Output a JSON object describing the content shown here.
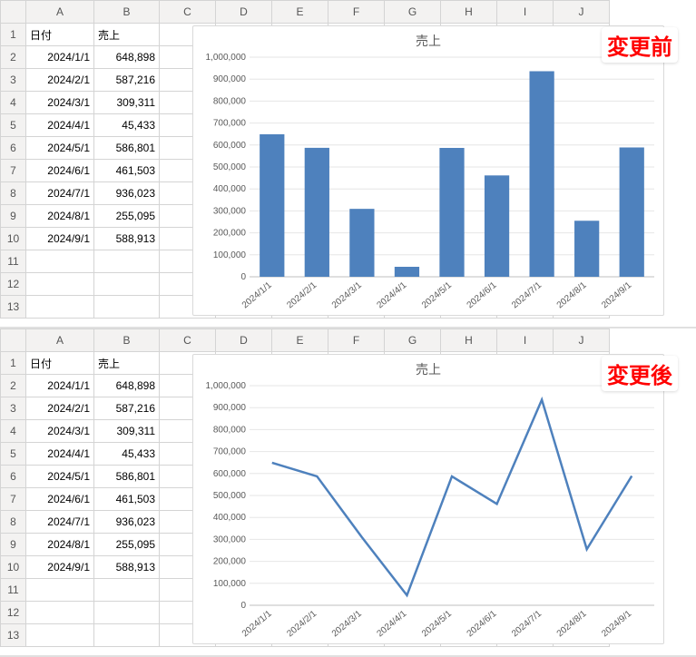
{
  "spreadsheet": {
    "columnLetters": [
      "A",
      "B",
      "C",
      "D",
      "E",
      "F",
      "G",
      "H",
      "I",
      "J"
    ],
    "headers": {
      "A": "日付",
      "B": "売上"
    },
    "rows": [
      {
        "date": "2024/1/1",
        "value": 648898,
        "fmt": "648,898"
      },
      {
        "date": "2024/2/1",
        "value": 587216,
        "fmt": "587,216"
      },
      {
        "date": "2024/3/1",
        "value": 309311,
        "fmt": "309,311"
      },
      {
        "date": "2024/4/1",
        "value": 45433,
        "fmt": "45,433"
      },
      {
        "date": "2024/5/1",
        "value": 586801,
        "fmt": "586,801"
      },
      {
        "date": "2024/6/1",
        "value": 461503,
        "fmt": "461,503"
      },
      {
        "date": "2024/7/1",
        "value": 936023,
        "fmt": "936,023"
      },
      {
        "date": "2024/8/1",
        "value": 255095,
        "fmt": "255,095"
      },
      {
        "date": "2024/9/1",
        "value": 588913,
        "fmt": "588,913"
      }
    ],
    "emptyRowsTop": 3,
    "emptyRowsBottom": 3
  },
  "topPanel": {
    "annotation": "変更前",
    "chart": {
      "type": "bar",
      "title": "売上",
      "title_fontsize": 14,
      "title_color": "#595959",
      "background_color": "#ffffff",
      "grid_color": "#e6e6e6",
      "axis_color": "#bfbfbf",
      "label_color": "#595959",
      "label_fontsize": 10,
      "ylim": [
        0,
        1000000
      ],
      "ytick_step": 100000,
      "ytick_labels": [
        "0",
        "100,000",
        "200,000",
        "300,000",
        "400,000",
        "500,000",
        "600,000",
        "700,000",
        "800,000",
        "900,000",
        "1,000,000"
      ],
      "categories": [
        "2024/1/1",
        "2024/2/1",
        "2024/3/1",
        "2024/4/1",
        "2024/5/1",
        "2024/6/1",
        "2024/7/1",
        "2024/8/1",
        "2024/9/1"
      ],
      "values": [
        648898,
        587216,
        309311,
        45433,
        586801,
        461503,
        936023,
        255095,
        588913
      ],
      "bar_color": "#4e81bd",
      "bar_width": 0.55,
      "xlabel_rotation": -40
    }
  },
  "bottomPanel": {
    "annotation": "変更後",
    "chart": {
      "type": "line",
      "title": "売上",
      "title_fontsize": 14,
      "title_color": "#595959",
      "background_color": "#ffffff",
      "grid_color": "#e6e6e6",
      "axis_color": "#bfbfbf",
      "label_color": "#595959",
      "label_fontsize": 10,
      "ylim": [
        0,
        1000000
      ],
      "ytick_step": 100000,
      "ytick_labels": [
        "0",
        "100,000",
        "200,000",
        "300,000",
        "400,000",
        "500,000",
        "600,000",
        "700,000",
        "800,000",
        "900,000",
        "1,000,000"
      ],
      "categories": [
        "2024/1/1",
        "2024/2/1",
        "2024/3/1",
        "2024/4/1",
        "2024/5/1",
        "2024/6/1",
        "2024/7/1",
        "2024/8/1",
        "2024/9/1"
      ],
      "values": [
        648898,
        587216,
        309311,
        45433,
        586801,
        461503,
        936023,
        255095,
        588913
      ],
      "line_color": "#4e81bd",
      "line_width": 2.5,
      "xlabel_rotation": -40
    }
  }
}
